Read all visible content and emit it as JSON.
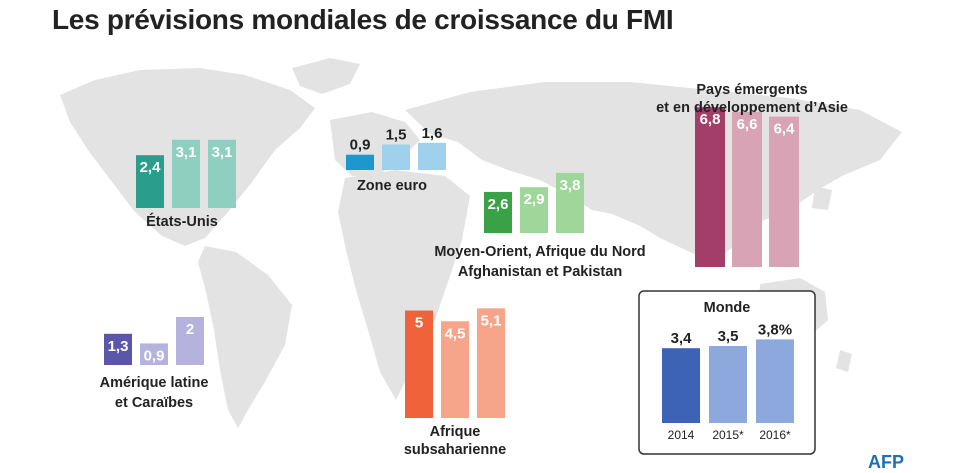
{
  "title": "Les prévisions mondiales de croissance du FMI",
  "logo_text": "AFP",
  "colors": {
    "map": "#e3e3e3",
    "etats_unis": [
      "#2a9d8c",
      "#8ecfbf",
      "#8ecfbf"
    ],
    "zone_euro": [
      "#1e98cc",
      "#9fd1ec",
      "#9fd1ec"
    ],
    "moyen_orient": [
      "#3aa147",
      "#9fd69a",
      "#9fd69a"
    ],
    "asie": [
      "#a23e68",
      "#d8a3b5",
      "#d8a3b5"
    ],
    "amerique_latine": [
      "#5c56ab",
      "#b5b3de",
      "#b5b3de"
    ],
    "afrique": [
      "#f0633a",
      "#f6a58b",
      "#f6a58b"
    ],
    "monde": [
      "#3d63b6",
      "#8da8dc",
      "#8da8dc"
    ]
  },
  "chart_data": [
    {
      "type": "bar",
      "group": "États-Unis",
      "label_lines": [
        "États-Unis"
      ],
      "values": [
        2.4,
        3.1,
        3.1
      ],
      "value_labels": [
        "2,4",
        "3,1",
        "3,1"
      ]
    },
    {
      "type": "bar",
      "group": "Zone euro",
      "label_lines": [
        "Zone euro"
      ],
      "values": [
        0.9,
        1.5,
        1.6
      ],
      "value_labels": [
        "0,9",
        "1,5",
        "1,6"
      ]
    },
    {
      "type": "bar",
      "group": "Moyen-Orient, Afrique du Nord Afghanistan et Pakistan",
      "label_lines": [
        "Moyen-Orient, Afrique du Nord",
        "Afghanistan et Pakistan"
      ],
      "values": [
        2.6,
        2.9,
        3.8
      ],
      "value_labels": [
        "2,6",
        "2,9",
        "3,8"
      ]
    },
    {
      "type": "bar",
      "group": "Pays émergents et en développement d'Asie",
      "label_lines": [
        "Pays émergents",
        "et en développement d’Asie"
      ],
      "values": [
        6.8,
        6.6,
        6.4
      ],
      "value_labels": [
        "6,8",
        "6,6",
        "6,4"
      ]
    },
    {
      "type": "bar",
      "group": "Amérique latine et Caraïbes",
      "label_lines": [
        "Amérique latine",
        "et Caraïbes"
      ],
      "values": [
        1.3,
        0.9,
        2.0
      ],
      "value_labels": [
        "1,3",
        "0,9",
        "2"
      ]
    },
    {
      "type": "bar",
      "group": "Afrique subsaharienne",
      "label_lines": [
        "Afrique",
        "subsaharienne"
      ],
      "values": [
        5.0,
        4.5,
        5.1
      ],
      "value_labels": [
        "5",
        "4,5",
        "5,1"
      ]
    },
    {
      "type": "bar",
      "group": "Monde",
      "label_lines": [
        "Monde"
      ],
      "values": [
        3.4,
        3.5,
        3.8
      ],
      "value_labels": [
        "3,4",
        "3,5",
        "3,8%"
      ],
      "categories": [
        "2014",
        "2015*",
        "2016*"
      ]
    }
  ]
}
